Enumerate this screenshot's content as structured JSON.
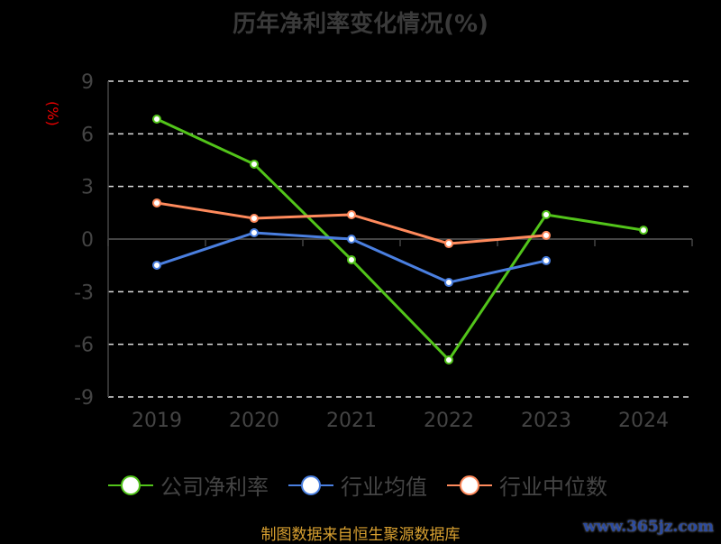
{
  "chart_data": {
    "type": "line",
    "title": "历年净利率变化情况(%)",
    "ylabel": "(%)",
    "categories": [
      "2019",
      "2020",
      "2021",
      "2022",
      "2023",
      "2024"
    ],
    "ylim": [
      -9,
      9
    ],
    "yticks": [
      9,
      6,
      3,
      0,
      -3,
      -6,
      -9
    ],
    "grid": true,
    "legend_position": "bottom",
    "series": [
      {
        "name": "公司净利率",
        "color": "#52c41a",
        "values": [
          6.84,
          4.27,
          -1.18,
          -6.89,
          1.39,
          0.51
        ]
      },
      {
        "name": "行业均值",
        "color": "#4a7fe0",
        "values": [
          -1.49,
          0.36,
          0.0,
          -2.47,
          -1.23,
          null
        ]
      },
      {
        "name": "行业中位数",
        "color": "#ff8a5c",
        "values": [
          2.06,
          1.18,
          1.39,
          -0.26,
          0.21,
          null
        ]
      }
    ]
  },
  "footer": {
    "source": "制图数据来自恒生聚源数据库",
    "watermark": "www.365jz.com"
  }
}
